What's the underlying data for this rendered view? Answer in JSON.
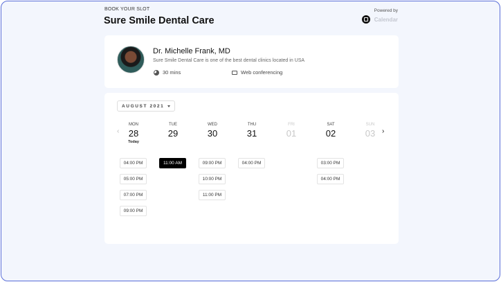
{
  "header": {
    "eyebrow": "BOOK YOUR SLOT",
    "title": "Sure Smile Dental Care",
    "powered_by": "Powered by",
    "brand": "Calendar"
  },
  "profile": {
    "name": "Dr. Michelle Frank, MD",
    "description": "Sure Smile Dental Care is one of the best dental clinics located in USA",
    "duration": "30 mins",
    "location": "Web conferencing"
  },
  "calendar": {
    "month": "AUGUST 2021",
    "today_label": "Today",
    "prev": "‹",
    "next": "›",
    "days": [
      {
        "dow": "MON",
        "num": "28",
        "today": true,
        "available": true,
        "slots": [
          "04:00 PM",
          "05:00 PM",
          "07:00 PM",
          "09:00 PM"
        ]
      },
      {
        "dow": "TUE",
        "num": "29",
        "available": true,
        "slots": [
          "11:00 AM"
        ],
        "selected": "11:00 AM"
      },
      {
        "dow": "WED",
        "num": "30",
        "available": true,
        "slots": [
          "09:00 PM",
          "10:00 PM",
          "11:00 PM"
        ]
      },
      {
        "dow": "THU",
        "num": "31",
        "available": true,
        "slots": [
          "04:00 PM"
        ]
      },
      {
        "dow": "FRI",
        "num": "01",
        "available": false,
        "slots": []
      },
      {
        "dow": "SAT",
        "num": "02",
        "available": true,
        "slots": [
          "03:00 PM",
          "04:00 PM"
        ]
      },
      {
        "dow": "SUN",
        "num": "03",
        "available": false,
        "slots": []
      }
    ]
  }
}
